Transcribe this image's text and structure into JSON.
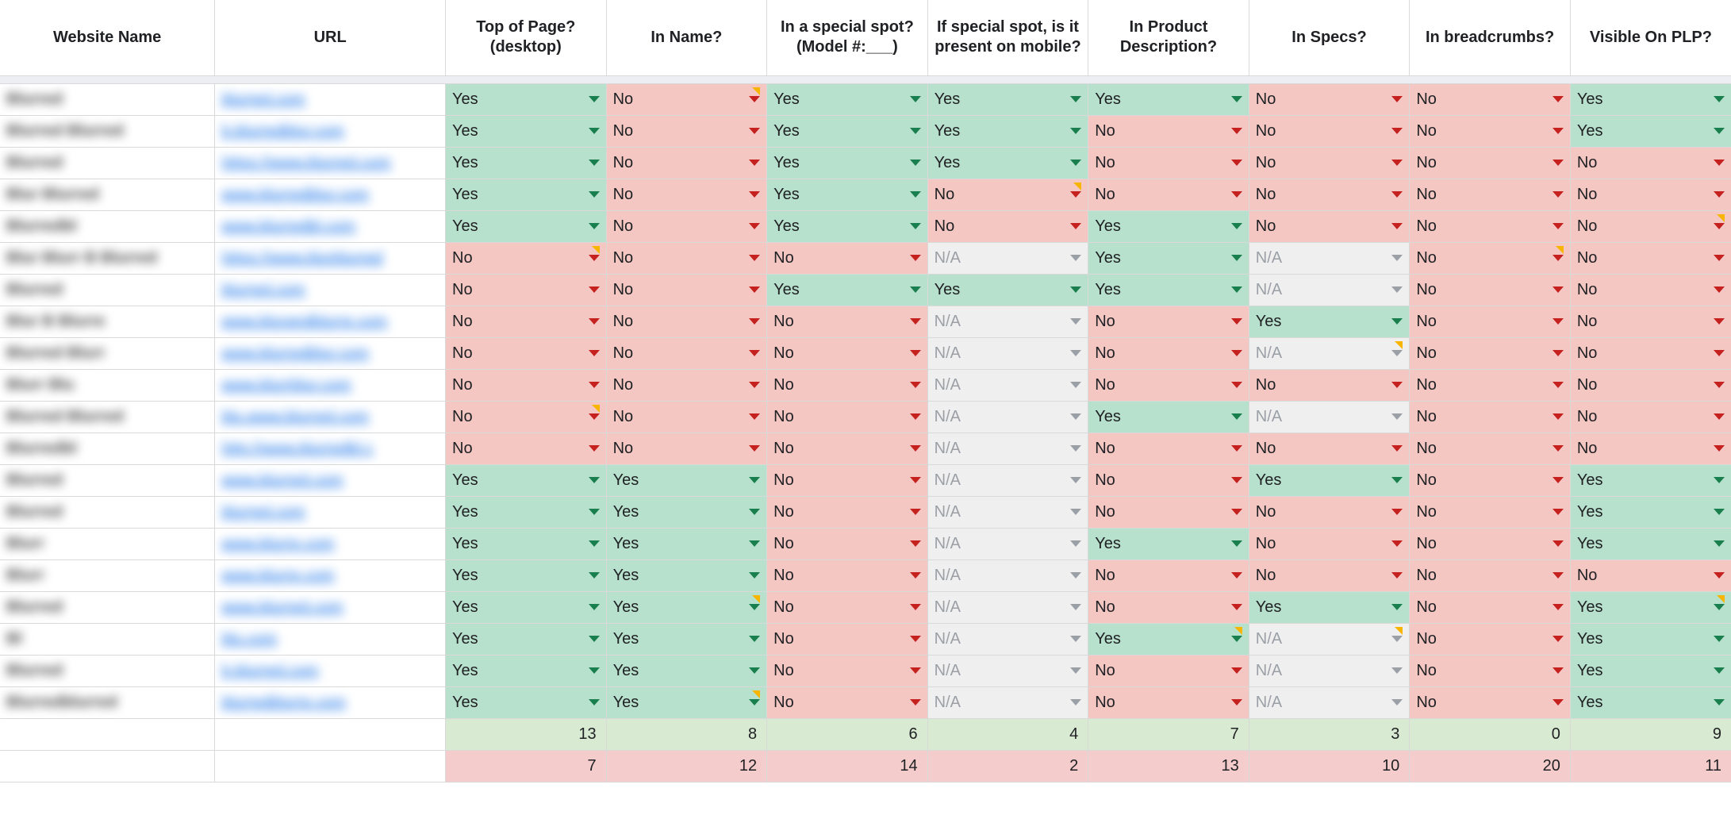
{
  "headers": [
    "Website Name",
    "URL",
    "Top of Page? (desktop)",
    "In Name?",
    "In a special spot? (Model #:___)",
    "If special spot, is it present on mobile?",
    "In Product Description?",
    "In Specs?",
    "In breadcrumbs?",
    "Visible On PLP?"
  ],
  "labels": {
    "yes": "Yes",
    "no": "No",
    "na": "N/A"
  },
  "colors": {
    "yes_bg": "#b7e1cd",
    "no_bg": "#f4c7c3",
    "na_bg": "#efefef",
    "arrow_green": "#1a7f4e",
    "arrow_red": "#c5221f",
    "arrow_gray": "#9aa0a6",
    "tot_green": "#d9ead3",
    "tot_pink": "#f4cccc",
    "link": "#1a73e8",
    "sep": "#eceef3",
    "corner": "#f7b500",
    "border": "#d9d9d9"
  },
  "rows": [
    {
      "name": "Blurred",
      "url": "blurred.com",
      "cells": [
        {
          "v": "Yes"
        },
        {
          "v": "No",
          "corner": true
        },
        {
          "v": "Yes"
        },
        {
          "v": "Yes"
        },
        {
          "v": "Yes"
        },
        {
          "v": "No"
        },
        {
          "v": "No"
        },
        {
          "v": "Yes"
        }
      ]
    },
    {
      "name": "Blurred Blurred",
      "url": "b.blurredblur.com",
      "cells": [
        {
          "v": "Yes"
        },
        {
          "v": "No"
        },
        {
          "v": "Yes"
        },
        {
          "v": "Yes"
        },
        {
          "v": "No"
        },
        {
          "v": "No"
        },
        {
          "v": "No"
        },
        {
          "v": "Yes"
        }
      ]
    },
    {
      "name": "Blurred",
      "url": "https://www.blurred.com",
      "cells": [
        {
          "v": "Yes"
        },
        {
          "v": "No"
        },
        {
          "v": "Yes"
        },
        {
          "v": "Yes"
        },
        {
          "v": "No"
        },
        {
          "v": "No"
        },
        {
          "v": "No"
        },
        {
          "v": "No"
        }
      ]
    },
    {
      "name": "Blur Blurred",
      "url": "www.blurredblur.com",
      "cells": [
        {
          "v": "Yes"
        },
        {
          "v": "No"
        },
        {
          "v": "Yes"
        },
        {
          "v": "No",
          "corner": true
        },
        {
          "v": "No"
        },
        {
          "v": "No"
        },
        {
          "v": "No"
        },
        {
          "v": "No"
        }
      ]
    },
    {
      "name": "Blurredbl",
      "url": "www.blurredbl.com",
      "cells": [
        {
          "v": "Yes"
        },
        {
          "v": "No"
        },
        {
          "v": "Yes"
        },
        {
          "v": "No"
        },
        {
          "v": "Yes"
        },
        {
          "v": "No"
        },
        {
          "v": "No"
        },
        {
          "v": "No",
          "corner": true
        }
      ]
    },
    {
      "name": "Blur Blurr B Blurred",
      "url": "https://www.blurblurred",
      "cells": [
        {
          "v": "No",
          "corner": true
        },
        {
          "v": "No"
        },
        {
          "v": "No"
        },
        {
          "v": "N/A"
        },
        {
          "v": "Yes"
        },
        {
          "v": "N/A"
        },
        {
          "v": "No",
          "corner": true
        },
        {
          "v": "No"
        }
      ]
    },
    {
      "name": "Blurred",
      "url": "blurred.com",
      "cells": [
        {
          "v": "No"
        },
        {
          "v": "No"
        },
        {
          "v": "Yes"
        },
        {
          "v": "Yes"
        },
        {
          "v": "Yes"
        },
        {
          "v": "N/A"
        },
        {
          "v": "No"
        },
        {
          "v": "No"
        }
      ]
    },
    {
      "name": "Blur B Blurre",
      "url": "www.blurandblurre.com",
      "cells": [
        {
          "v": "No"
        },
        {
          "v": "No"
        },
        {
          "v": "No"
        },
        {
          "v": "N/A"
        },
        {
          "v": "No"
        },
        {
          "v": "Yes"
        },
        {
          "v": "No"
        },
        {
          "v": "No"
        }
      ]
    },
    {
      "name": "Blurred Blurr",
      "url": "www.blurredblur.com",
      "cells": [
        {
          "v": "No"
        },
        {
          "v": "No"
        },
        {
          "v": "No"
        },
        {
          "v": "N/A"
        },
        {
          "v": "No"
        },
        {
          "v": "N/A",
          "corner": true
        },
        {
          "v": "No"
        },
        {
          "v": "No"
        }
      ]
    },
    {
      "name": "Blurr Blu",
      "url": "www.blurrblur.com",
      "cells": [
        {
          "v": "No"
        },
        {
          "v": "No"
        },
        {
          "v": "No"
        },
        {
          "v": "N/A"
        },
        {
          "v": "No"
        },
        {
          "v": "No"
        },
        {
          "v": "No"
        },
        {
          "v": "No"
        }
      ]
    },
    {
      "name": "Blurred Blurred",
      "url": "blu.www.blurred.com",
      "cells": [
        {
          "v": "No",
          "corner": true
        },
        {
          "v": "No"
        },
        {
          "v": "No"
        },
        {
          "v": "N/A"
        },
        {
          "v": "Yes"
        },
        {
          "v": "N/A"
        },
        {
          "v": "No"
        },
        {
          "v": "No"
        }
      ]
    },
    {
      "name": "Blurredbl",
      "url": "http://www.blurredbl.c",
      "cells": [
        {
          "v": "No"
        },
        {
          "v": "No"
        },
        {
          "v": "No"
        },
        {
          "v": "N/A"
        },
        {
          "v": "No"
        },
        {
          "v": "No"
        },
        {
          "v": "No"
        },
        {
          "v": "No"
        }
      ]
    },
    {
      "name": "Blurred",
      "url": "www.blurred.com",
      "cells": [
        {
          "v": "Yes"
        },
        {
          "v": "Yes"
        },
        {
          "v": "No"
        },
        {
          "v": "N/A"
        },
        {
          "v": "No"
        },
        {
          "v": "Yes"
        },
        {
          "v": "No"
        },
        {
          "v": "Yes"
        }
      ]
    },
    {
      "name": "Blurred",
      "url": "blurred.com",
      "cells": [
        {
          "v": "Yes"
        },
        {
          "v": "Yes"
        },
        {
          "v": "No"
        },
        {
          "v": "N/A"
        },
        {
          "v": "No"
        },
        {
          "v": "No"
        },
        {
          "v": "No"
        },
        {
          "v": "Yes"
        }
      ]
    },
    {
      "name": "Blurr",
      "url": "www.blurre.com",
      "cells": [
        {
          "v": "Yes"
        },
        {
          "v": "Yes"
        },
        {
          "v": "No"
        },
        {
          "v": "N/A"
        },
        {
          "v": "Yes"
        },
        {
          "v": "No"
        },
        {
          "v": "No"
        },
        {
          "v": "Yes"
        }
      ]
    },
    {
      "name": "Blurr",
      "url": "www.blurre.com",
      "cells": [
        {
          "v": "Yes"
        },
        {
          "v": "Yes"
        },
        {
          "v": "No"
        },
        {
          "v": "N/A"
        },
        {
          "v": "No"
        },
        {
          "v": "No"
        },
        {
          "v": "No"
        },
        {
          "v": "No"
        }
      ]
    },
    {
      "name": "Blurred",
      "url": "www.blurred.com",
      "cells": [
        {
          "v": "Yes"
        },
        {
          "v": "Yes",
          "corner": true
        },
        {
          "v": "No"
        },
        {
          "v": "N/A"
        },
        {
          "v": "No"
        },
        {
          "v": "Yes"
        },
        {
          "v": "No"
        },
        {
          "v": "Yes",
          "corner": true
        }
      ]
    },
    {
      "name": "Bl",
      "url": "blu.com",
      "cells": [
        {
          "v": "Yes"
        },
        {
          "v": "Yes"
        },
        {
          "v": "No"
        },
        {
          "v": "N/A"
        },
        {
          "v": "Yes",
          "corner": true
        },
        {
          "v": "N/A",
          "corner": true
        },
        {
          "v": "No"
        },
        {
          "v": "Yes"
        }
      ]
    },
    {
      "name": "Blurred",
      "url": "b.blurred.com",
      "cells": [
        {
          "v": "Yes"
        },
        {
          "v": "Yes"
        },
        {
          "v": "No"
        },
        {
          "v": "N/A"
        },
        {
          "v": "No"
        },
        {
          "v": "N/A"
        },
        {
          "v": "No"
        },
        {
          "v": "Yes"
        }
      ]
    },
    {
      "name": "Blurredblurred",
      "url": "blurredblurre.com",
      "cells": [
        {
          "v": "Yes"
        },
        {
          "v": "Yes",
          "corner": true
        },
        {
          "v": "No"
        },
        {
          "v": "N/A"
        },
        {
          "v": "No"
        },
        {
          "v": "N/A"
        },
        {
          "v": "No"
        },
        {
          "v": "Yes"
        }
      ]
    }
  ],
  "totals_green": [
    13,
    8,
    6,
    4,
    7,
    3,
    0,
    9
  ],
  "totals_pink": [
    7,
    12,
    14,
    2,
    13,
    10,
    20,
    11
  ]
}
